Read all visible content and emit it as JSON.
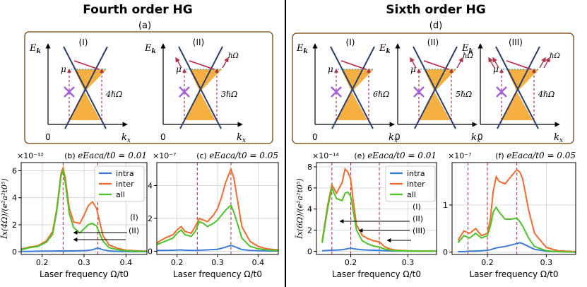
{
  "titles": {
    "left": "Fourth order HG",
    "right": "Sixth order HG"
  },
  "schematic_labels": {
    "left": "(a)",
    "right": "(d)"
  },
  "axis_symbols": {
    "energy": "E",
    "energy_sub": "k",
    "momentum": "k",
    "momentum_sub": "x",
    "origin": "0",
    "mu": "μ"
  },
  "left_schematic": {
    "panels": [
      {
        "roman": "(I)",
        "photon": "4ℏΩ",
        "side_photons": 0
      },
      {
        "roman": "(II)",
        "photon": "3ℏΩ",
        "side_photons": 1,
        "side_label": "ℏΩ"
      }
    ]
  },
  "right_schematic": {
    "panels": [
      {
        "roman": "(I)",
        "photon": "6ℏΩ",
        "side_photons": 0
      },
      {
        "roman": "(II)",
        "photon": "5ℏΩ",
        "side_photons": 1,
        "side_label": "ℏΩ"
      },
      {
        "roman": "(III)",
        "photon": "4ℏΩ",
        "side_photons": 2,
        "side_label": "ℏΩ"
      }
    ]
  },
  "legend": {
    "intra": "intra",
    "inter": "inter",
    "all": "all"
  },
  "colors": {
    "intra": "#3b7dd8",
    "inter": "#f36a2b",
    "all": "#4cc428",
    "vline": "#c0203a",
    "band": "#f5b041",
    "cone": "#2c3e6e",
    "box": "#8b5a2b"
  },
  "chart_data": [
    {
      "type": "line",
      "panel": "(b)",
      "title": "eE_ac a/t_0 = 0.01",
      "title_text": "eEaca/t0 = 0.01",
      "exponent": "×10⁻¹²",
      "ylabel": "Ĩx(4Ω)/(e²a²t0⁵)",
      "xlabel": "Laser frequency Ω/t0",
      "xlim": [
        0.15,
        0.45
      ],
      "ylim": [
        -0.2,
        6.6
      ],
      "xticks": [
        0.2,
        0.3,
        0.4
      ],
      "yticks": [
        0,
        2,
        4,
        6
      ],
      "vlines": [
        0.25,
        0.333
      ],
      "annotations": [
        "(I)",
        "(II)"
      ],
      "x": [
        0.15,
        0.17,
        0.19,
        0.21,
        0.225,
        0.235,
        0.245,
        0.25,
        0.255,
        0.265,
        0.275,
        0.29,
        0.3,
        0.31,
        0.32,
        0.33,
        0.335,
        0.345,
        0.36,
        0.38,
        0.4,
        0.42,
        0.45
      ],
      "series": [
        {
          "name": "intra",
          "values": [
            0.02,
            0.03,
            0.04,
            0.05,
            0.05,
            0.06,
            0.06,
            0.06,
            0.06,
            0.06,
            0.06,
            0.07,
            0.08,
            0.1,
            0.15,
            0.25,
            0.25,
            0.15,
            0.06,
            0.03,
            0.02,
            0.01,
            0.01
          ]
        },
        {
          "name": "inter",
          "values": [
            0.2,
            0.35,
            0.45,
            0.8,
            1.5,
            3.2,
            5.8,
            6.2,
            5.5,
            3.2,
            2.2,
            2.1,
            2.7,
            3.4,
            3.7,
            3.2,
            2.5,
            1.2,
            0.5,
            0.25,
            0.12,
            0.08,
            0.05
          ]
        },
        {
          "name": "all",
          "values": [
            0.15,
            0.3,
            0.4,
            0.7,
            1.3,
            3.0,
            5.6,
            6.0,
            5.2,
            2.8,
            1.8,
            1.4,
            1.7,
            2.0,
            2.1,
            1.9,
            1.5,
            0.8,
            0.3,
            0.15,
            0.08,
            0.05,
            0.03
          ]
        }
      ]
    },
    {
      "type": "line",
      "panel": "(c)",
      "title": "eE_ac a/t_0 = 0.05",
      "title_text": "eEaca/t0 = 0.05",
      "exponent": "×10⁻⁷",
      "ylabel": "",
      "xlabel": "Laser frequency Ω/t0",
      "xlim": [
        0.15,
        0.45
      ],
      "ylim": [
        -0.2,
        5.4
      ],
      "xticks": [
        0.2,
        0.3,
        0.4
      ],
      "yticks": [
        0,
        2,
        4
      ],
      "vlines": [
        0.25,
        0.333
      ],
      "x": [
        0.15,
        0.17,
        0.19,
        0.2,
        0.21,
        0.22,
        0.235,
        0.245,
        0.255,
        0.265,
        0.275,
        0.29,
        0.3,
        0.31,
        0.32,
        0.333,
        0.34,
        0.35,
        0.36,
        0.38,
        0.4,
        0.42,
        0.45
      ],
      "series": [
        {
          "name": "intra",
          "values": [
            0.05,
            0.05,
            0.06,
            0.07,
            0.08,
            0.06,
            0.05,
            0.05,
            0.06,
            0.07,
            0.08,
            0.1,
            0.12,
            0.18,
            0.25,
            0.35,
            0.3,
            0.2,
            0.1,
            0.05,
            0.03,
            0.02,
            0.01
          ]
        },
        {
          "name": "inter",
          "values": [
            0.5,
            0.8,
            1.0,
            1.3,
            1.5,
            1.2,
            1.1,
            1.5,
            2.0,
            1.9,
            1.8,
            2.2,
            2.6,
            3.3,
            4.2,
            5.0,
            4.5,
            3.0,
            1.5,
            0.6,
            0.3,
            0.15,
            0.08
          ]
        },
        {
          "name": "all",
          "values": [
            0.4,
            0.6,
            0.8,
            1.1,
            1.3,
            1.0,
            0.9,
            1.2,
            1.8,
            1.7,
            1.5,
            1.7,
            1.9,
            2.2,
            2.5,
            2.8,
            2.4,
            1.6,
            0.8,
            0.3,
            0.15,
            0.08,
            0.04
          ]
        }
      ]
    },
    {
      "type": "line",
      "panel": "(e)",
      "title": "eE_ac a/t_0 = 0.01",
      "title_text": "eEaca/t0 = 0.01",
      "exponent": "×10⁻¹⁴",
      "ylabel": "Ĩx(6Ω)/(e²a²t0⁵)",
      "xlabel": "Laser frequency Ω/t0",
      "xlim": [
        0.14,
        0.35
      ],
      "ylim": [
        -0.3,
        8.4
      ],
      "xticks": [
        0.2,
        0.3
      ],
      "yticks": [
        0,
        2,
        4,
        6,
        8
      ],
      "vlines": [
        0.167,
        0.2,
        0.25
      ],
      "annotations": [
        "(I)",
        "(II)",
        "(III)"
      ],
      "x": [
        0.15,
        0.16,
        0.167,
        0.175,
        0.185,
        0.19,
        0.195,
        0.2,
        0.205,
        0.21,
        0.22,
        0.23,
        0.24,
        0.25,
        0.26,
        0.27,
        0.28,
        0.3,
        0.32,
        0.35
      ],
      "series": [
        {
          "name": "intra",
          "values": [
            0.05,
            0.08,
            0.1,
            0.12,
            0.15,
            0.2,
            0.25,
            0.3,
            0.25,
            0.2,
            0.15,
            0.12,
            0.1,
            0.08,
            0.05,
            0.04,
            0.03,
            0.02,
            0.01,
            0.01
          ]
        },
        {
          "name": "inter",
          "values": [
            1.0,
            4.5,
            6.3,
            5.5,
            6.5,
            7.8,
            7.5,
            6.8,
            4.5,
            2.5,
            1.5,
            1.2,
            1.0,
            0.9,
            0.4,
            0.2,
            0.1,
            0.05,
            0.03,
            0.02
          ]
        },
        {
          "name": "all",
          "values": [
            0.8,
            4.2,
            6.0,
            5.0,
            4.8,
            5.5,
            5.6,
            5.2,
            3.6,
            2.0,
            1.0,
            0.7,
            0.5,
            0.4,
            0.2,
            0.1,
            0.05,
            0.03,
            0.02,
            0.01
          ]
        }
      ]
    },
    {
      "type": "line",
      "panel": "(f)",
      "title": "eE_ac a/t_0 = 0.05",
      "title_text": "eEaca/t0 = 0.05",
      "exponent": "×10⁻⁷",
      "ylabel": "",
      "xlabel": "Laser frequency Ω/t0",
      "xlim": [
        0.14,
        0.35
      ],
      "ylim": [
        -0.05,
        1.9
      ],
      "xticks": [
        0.2,
        0.3
      ],
      "yticks": [
        0,
        1
      ],
      "vlines": [
        0.167,
        0.2,
        0.25
      ],
      "x": [
        0.15,
        0.16,
        0.17,
        0.18,
        0.19,
        0.2,
        0.205,
        0.21,
        0.215,
        0.22,
        0.23,
        0.24,
        0.25,
        0.255,
        0.26,
        0.27,
        0.28,
        0.3,
        0.32,
        0.35
      ],
      "series": [
        {
          "name": "intra",
          "values": [
            0.01,
            0.01,
            0.02,
            0.02,
            0.03,
            0.04,
            0.05,
            0.07,
            0.09,
            0.1,
            0.12,
            0.15,
            0.18,
            0.2,
            0.18,
            0.12,
            0.06,
            0.02,
            0.01,
            0.0
          ]
        },
        {
          "name": "inter",
          "values": [
            0.25,
            0.45,
            0.4,
            0.5,
            0.35,
            0.4,
            0.7,
            1.3,
            1.6,
            1.5,
            1.45,
            1.6,
            1.75,
            1.7,
            1.55,
            0.9,
            0.4,
            0.1,
            0.03,
            0.01
          ]
        },
        {
          "name": "all",
          "values": [
            0.2,
            0.35,
            0.3,
            0.4,
            0.3,
            0.35,
            0.55,
            0.85,
            0.95,
            0.85,
            0.7,
            0.7,
            0.72,
            0.65,
            0.55,
            0.3,
            0.12,
            0.03,
            0.01,
            0.0
          ]
        }
      ]
    }
  ]
}
